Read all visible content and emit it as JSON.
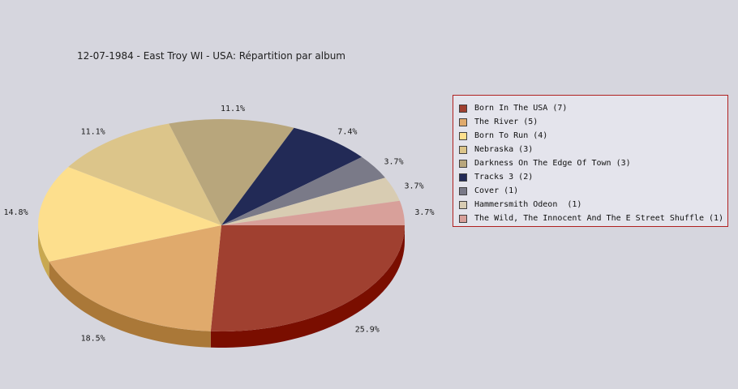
{
  "chart_data": {
    "type": "pie",
    "title": "12-07-1984 - East Troy WI - USA:  Répartition par album",
    "legend_position": "right",
    "slices": [
      {
        "label": "Born In The USA (7)",
        "value": 7,
        "percent_label": "25.9%",
        "color": "#a04030",
        "side_color": "#7a0e00"
      },
      {
        "label": "The River (5)",
        "value": 5,
        "percent_label": "18.5%",
        "color": "#e0aa6c",
        "side_color": "#aa7838"
      },
      {
        "label": "Born To Run (4)",
        "value": 4,
        "percent_label": "14.8%",
        "color": "#fddf8d",
        "side_color": "#c8a850"
      },
      {
        "label": "Nebraska (3)",
        "value": 3,
        "percent_label": "11.1%",
        "color": "#dcc58a",
        "side_color": "#a89050"
      },
      {
        "label": "Darkness On The Edge Of Town (3)",
        "value": 3,
        "percent_label": "11.1%",
        "color": "#b8a67c",
        "side_color": "#887650"
      },
      {
        "label": "Tracks 3 (2)",
        "value": 2,
        "percent_label": "7.4%",
        "color": "#222a56",
        "side_color": "#0a1030"
      },
      {
        "label": "Cover (1)",
        "value": 1,
        "percent_label": "3.7%",
        "color": "#7a7a88",
        "side_color": "#50505c"
      },
      {
        "label": "Hammersmith Odeon  (1)",
        "value": 1,
        "percent_label": "3.7%",
        "color": "#d8ccb2",
        "side_color": "#a89c84"
      },
      {
        "label": "The Wild, The Innocent And The E Street Shuffle (1)",
        "value": 1,
        "percent_label": "3.7%",
        "color": "#d8a09a",
        "side_color": "#a8706a"
      }
    ]
  }
}
